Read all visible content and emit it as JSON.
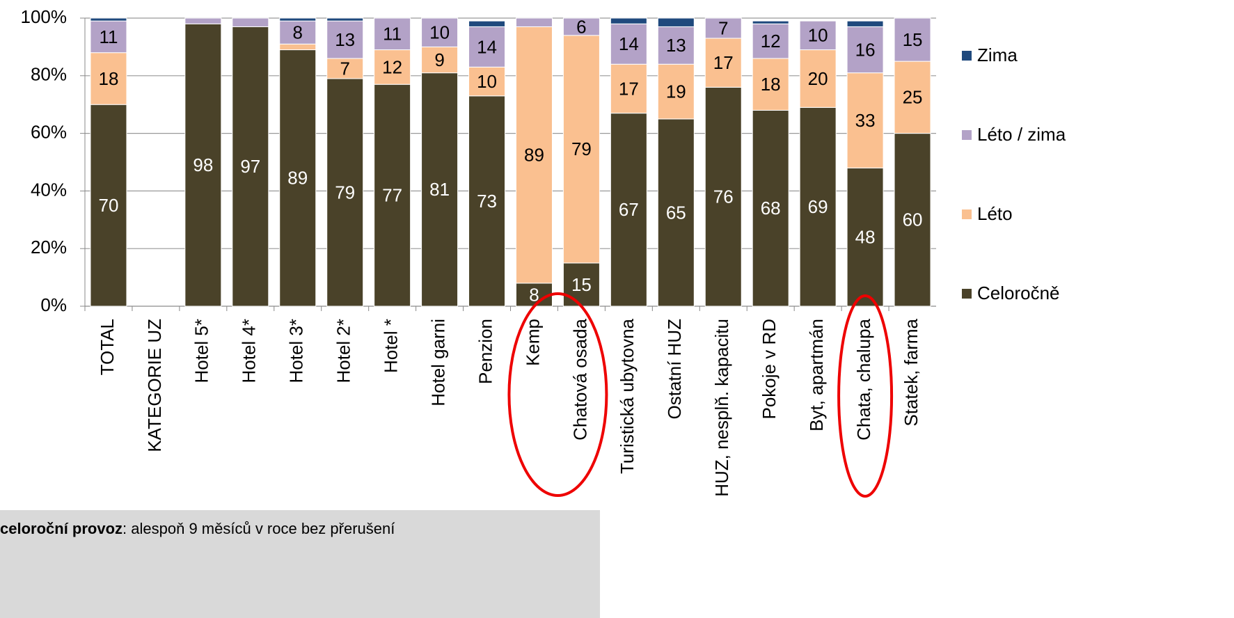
{
  "chart_data": {
    "type": "stacked_bar",
    "categories": [
      "TOTAL",
      "KATEGORIE UZ",
      "Hotel 5*",
      "Hotel 4*",
      "Hotel 3*",
      "Hotel 2*",
      "Hotel *",
      "Hotel garni",
      "Penzion",
      "Kemp",
      "Chatová osada",
      "Turistická ubytovna",
      "Ostatní HUZ",
      "HUZ, nesplň. kapacitu",
      "Pokoje v RD",
      "Byt, apartmán",
      "Chata, chalupa",
      "Statek, farma"
    ],
    "series": [
      {
        "name": "Celoročně",
        "color": "#4a4229",
        "values": [
          70,
          null,
          98,
          97,
          89,
          79,
          77,
          81,
          73,
          8,
          15,
          67,
          65,
          76,
          68,
          69,
          48,
          60
        ]
      },
      {
        "name": "Léto",
        "color": "#fac090",
        "values": [
          18,
          null,
          0,
          0,
          2,
          7,
          12,
          9,
          10,
          89,
          79,
          17,
          19,
          17,
          18,
          20,
          33,
          25
        ]
      },
      {
        "name": "Léto / zima",
        "color": "#b3a2c7",
        "values": [
          11,
          null,
          2,
          3,
          8,
          13,
          11,
          10,
          14,
          3,
          6,
          14,
          13,
          7,
          12,
          10,
          16,
          15
        ]
      },
      {
        "name": "Zima",
        "color": "#1f497d",
        "values": [
          1,
          null,
          0,
          0,
          1,
          1,
          0,
          0,
          2,
          0,
          0,
          2,
          3,
          0,
          1,
          0,
          2,
          0
        ]
      }
    ],
    "ylim": [
      0,
      100
    ],
    "yticks": [
      {
        "value": 0,
        "label": "0%"
      },
      {
        "value": 20,
        "label": "20%"
      },
      {
        "value": 40,
        "label": "40%"
      },
      {
        "value": 60,
        "label": "60%"
      },
      {
        "value": 80,
        "label": "80%"
      },
      {
        "value": 100,
        "label": "100%"
      }
    ],
    "grid": true,
    "legend": "right",
    "annotation": {
      "bold": "celoroční provoz",
      "text": ": alespoň 9 měsíců v roce bez přerušení"
    }
  }
}
